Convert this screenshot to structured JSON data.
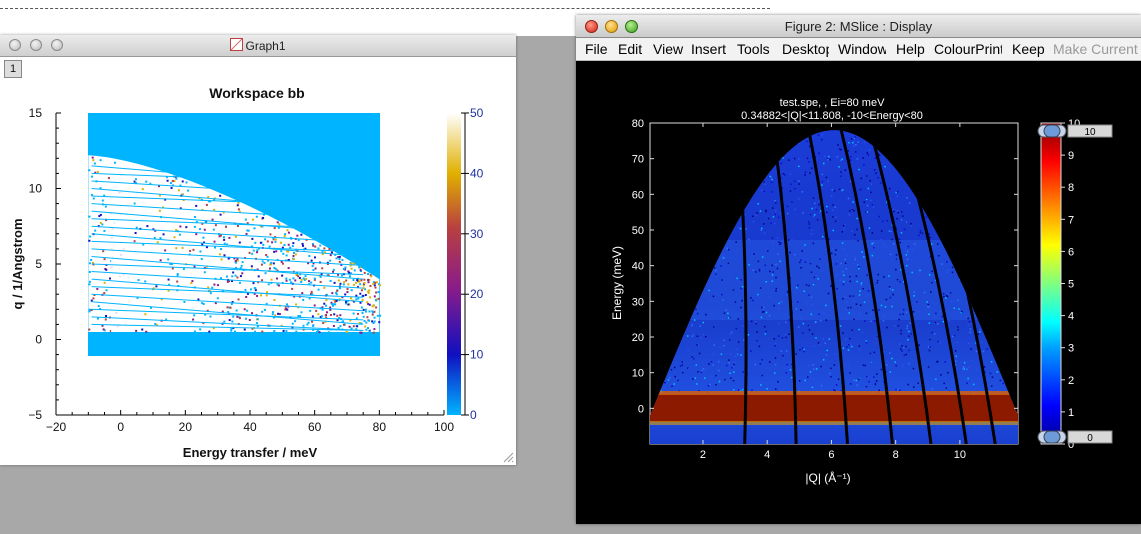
{
  "graph1": {
    "title": "Graph1",
    "layer_tab": "1",
    "plot_title": "Workspace bb",
    "xlabel": "Energy transfer / meV",
    "ylabel": "q / 1/Angstrom",
    "x_ticks": [
      "−20",
      "0",
      "20",
      "40",
      "60",
      "80",
      "100"
    ],
    "y_ticks": [
      "15",
      "10",
      "5",
      "0",
      "−5"
    ],
    "colorbar_ticks": [
      "50",
      "40",
      "30",
      "20",
      "10",
      "0"
    ],
    "colors": {
      "background": "#00b4ff",
      "map": "#ffffff"
    }
  },
  "mslice": {
    "title": "Figure 2: MSlice : Display",
    "menu": [
      {
        "label": "File",
        "enabled": true
      },
      {
        "label": "Edit",
        "enabled": true
      },
      {
        "label": "View",
        "enabled": true
      },
      {
        "label": "Insert",
        "enabled": true
      },
      {
        "label": "Tools",
        "enabled": true
      },
      {
        "label": "Desktop",
        "enabled": true
      },
      {
        "label": "Window",
        "enabled": true
      },
      {
        "label": "Help",
        "enabled": true
      },
      {
        "label": "ColourPrint",
        "enabled": true
      },
      {
        "label": "Keep",
        "enabled": true
      },
      {
        "label": "Make Current",
        "enabled": false
      }
    ],
    "plot_title_line1": "test.spe, , Ei=80 meV",
    "plot_title_line2": "0.34882<|Q|<11.808, -10<Energy<80",
    "xlabel": "|Q| (Å⁻¹)",
    "ylabel": "Energy (meV)",
    "x_ticks": [
      "2",
      "4",
      "6",
      "8",
      "10"
    ],
    "y_ticks": [
      "80",
      "70",
      "60",
      "50",
      "40",
      "30",
      "20",
      "10",
      "0"
    ],
    "colorbar_ticks": [
      "10",
      "9",
      "8",
      "7",
      "6",
      "5",
      "4",
      "3",
      "2",
      "1",
      "0"
    ],
    "slider_top_value": "10",
    "slider_bottom_value": "0",
    "colors": {
      "background": "#000000",
      "intensity_band": "#8b1a00",
      "scatter": "#1030d0"
    }
  }
}
